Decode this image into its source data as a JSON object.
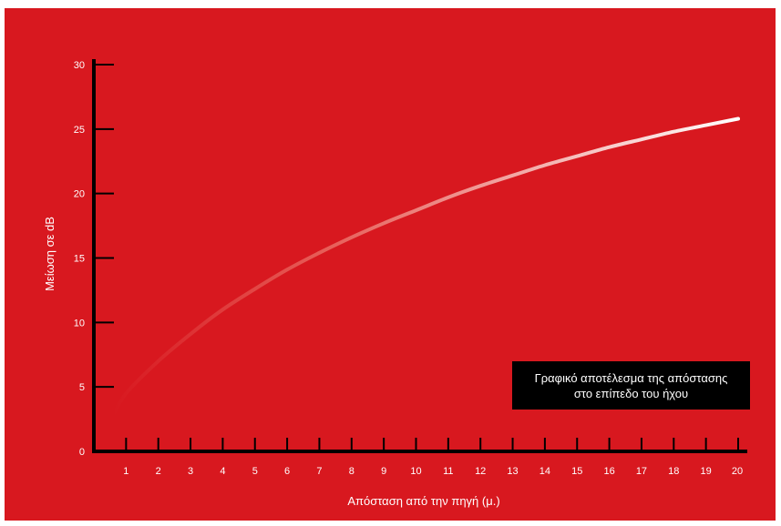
{
  "colors": {
    "background": "#d8181f",
    "axis": "#000000",
    "text": "#ffffff",
    "annotation_bg": "#000000",
    "line_start": "#d8181f",
    "line_end": "#ffffff"
  },
  "chart_data": {
    "type": "line",
    "title": "",
    "xlabel": "Απόσταση από την πηγή (μ.)",
    "ylabel": "Μείωση σε dB",
    "xlim": [
      0,
      20
    ],
    "ylim": [
      0,
      30
    ],
    "x_ticks": [
      1,
      2,
      3,
      4,
      5,
      6,
      7,
      8,
      9,
      10,
      11,
      12,
      13,
      14,
      15,
      16,
      17,
      18,
      19,
      20
    ],
    "y_ticks": [
      0,
      5,
      10,
      15,
      20,
      25,
      30
    ],
    "grid": false,
    "legend": "none",
    "series": [
      {
        "x": [
          0.6,
          1,
          2,
          3,
          4,
          5,
          6,
          7,
          8,
          9,
          10,
          11,
          12,
          13,
          14,
          15,
          16,
          17,
          18,
          19,
          20
        ],
        "values": [
          2.8,
          4.5,
          7.0,
          9.1,
          11.0,
          12.6,
          14.1,
          15.4,
          16.6,
          17.7,
          18.7,
          19.7,
          20.6,
          21.4,
          22.2,
          22.9,
          23.6,
          24.2,
          24.8,
          25.3,
          25.8
        ]
      }
    ],
    "annotation": [
      "Γραφικό αποτέλεσμα της απόστασης",
      "στο επίπεδο του ήχου"
    ]
  }
}
